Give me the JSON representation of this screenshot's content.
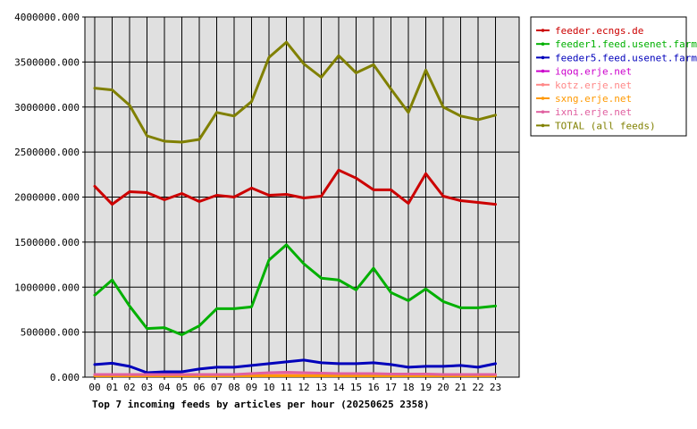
{
  "chart_data": {
    "type": "line",
    "title": "Top 7 incoming feeds by articles per hour (20250625 2358)",
    "x": [
      "00",
      "01",
      "02",
      "03",
      "04",
      "05",
      "06",
      "07",
      "08",
      "09",
      "10",
      "11",
      "12",
      "13",
      "14",
      "15",
      "16",
      "17",
      "18",
      "19",
      "20",
      "21",
      "22",
      "23"
    ],
    "y_ticks": [
      "0.000",
      "500000.000",
      "1000000.000",
      "1500000.000",
      "2000000.000",
      "2500000.000",
      "3000000.000",
      "3500000.000",
      "4000000.000"
    ],
    "ylim": [
      0,
      4000000
    ],
    "grid": true,
    "legend_position": "right",
    "series": [
      {
        "name": "feeder.ecngs.de",
        "color": "#cc0000",
        "values": [
          2120000,
          1920000,
          2060000,
          2050000,
          1970000,
          2040000,
          1950000,
          2020000,
          2000000,
          2100000,
          2020000,
          2030000,
          1990000,
          2010000,
          2300000,
          2210000,
          2080000,
          2080000,
          1930000,
          2260000,
          2010000,
          1960000,
          1940000,
          1920000
        ]
      },
      {
        "name": "feeder1.feed.usenet.farm",
        "color": "#00b000",
        "values": [
          910000,
          1080000,
          790000,
          540000,
          550000,
          470000,
          570000,
          760000,
          760000,
          780000,
          1300000,
          1470000,
          1260000,
          1100000,
          1080000,
          970000,
          1210000,
          940000,
          850000,
          980000,
          840000,
          770000,
          770000,
          790000
        ]
      },
      {
        "name": "feeder5.feed.usenet.farm",
        "color": "#0000bb",
        "values": [
          140000,
          155000,
          120000,
          50000,
          60000,
          60000,
          90000,
          110000,
          110000,
          130000,
          150000,
          170000,
          190000,
          160000,
          150000,
          150000,
          160000,
          140000,
          110000,
          120000,
          120000,
          130000,
          110000,
          150000
        ]
      },
      {
        "name": "iqoq.erje.net",
        "color": "#cc00cc",
        "values": [
          20000,
          20000,
          20000,
          20000,
          20000,
          20000,
          20000,
          20000,
          20000,
          20000,
          20000,
          20000,
          20000,
          20000,
          20000,
          20000,
          20000,
          20000,
          20000,
          20000,
          20000,
          20000,
          20000,
          20000
        ]
      },
      {
        "name": "kotz.erje.net",
        "color": "#ff8888",
        "values": [
          25000,
          25000,
          25000,
          25000,
          25000,
          25000,
          25000,
          25000,
          25000,
          25000,
          25000,
          25000,
          25000,
          25000,
          25000,
          25000,
          25000,
          25000,
          25000,
          25000,
          25000,
          25000,
          25000,
          25000
        ]
      },
      {
        "name": "sxng.erje.net",
        "color": "#ff9900",
        "values": [
          15000,
          15000,
          15000,
          15000,
          15000,
          15000,
          15000,
          15000,
          15000,
          15000,
          15000,
          15000,
          15000,
          15000,
          15000,
          15000,
          15000,
          15000,
          15000,
          15000,
          15000,
          15000,
          15000,
          15000
        ]
      },
      {
        "name": "ixni.erje.net",
        "color": "#e060a0",
        "values": [
          30000,
          30000,
          30000,
          30000,
          30000,
          30000,
          30000,
          30000,
          30000,
          40000,
          50000,
          55000,
          50000,
          45000,
          40000,
          40000,
          40000,
          35000,
          35000,
          35000,
          30000,
          30000,
          30000,
          30000
        ]
      },
      {
        "name": "TOTAL (all feeds)",
        "color": "#808000",
        "values": [
          3210000,
          3190000,
          3020000,
          2680000,
          2620000,
          2610000,
          2640000,
          2940000,
          2900000,
          3060000,
          3550000,
          3720000,
          3480000,
          3330000,
          3570000,
          3380000,
          3470000,
          3200000,
          2940000,
          3410000,
          3000000,
          2900000,
          2860000,
          2910000
        ]
      }
    ]
  }
}
